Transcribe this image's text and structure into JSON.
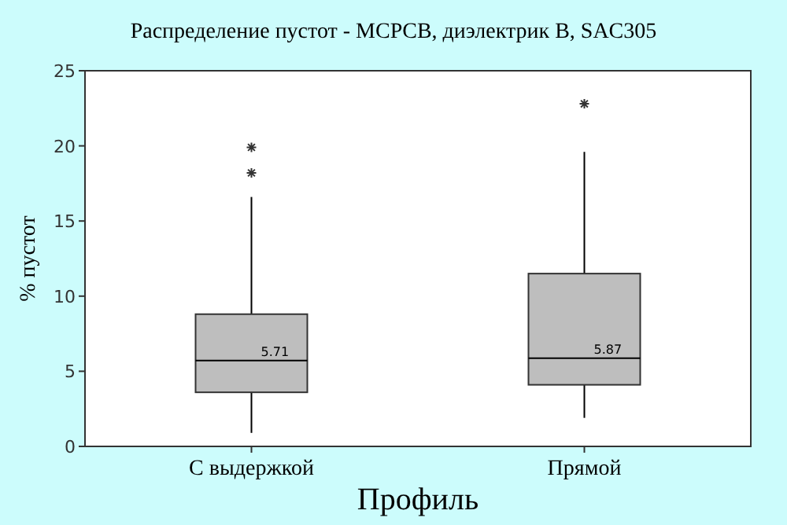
{
  "chart_data": {
    "type": "box",
    "title": "Распределение пустот - MCPCB, диэлектрик B, SAC305",
    "xlabel": "Профиль",
    "ylabel": "% пустот",
    "categories": [
      "С выдержкой",
      "Прямой"
    ],
    "color": "#bebebe",
    "boxes": [
      {
        "low": 0.9,
        "q1": 3.6,
        "median": 5.71,
        "q3": 8.8,
        "high": 16.6,
        "outliers": [
          18.2,
          19.9
        ]
      },
      {
        "low": 1.9,
        "q1": 4.1,
        "median": 5.87,
        "q3": 11.5,
        "high": 19.6,
        "outliers": [
          22.8
        ]
      }
    ],
    "annotations": [
      {
        "text": "5.71",
        "x": "С выдержкой",
        "y": 5.71
      },
      {
        "text": "5.87",
        "x": "Прямой",
        "y": 5.87
      }
    ],
    "ylim": [
      0,
      25
    ],
    "yticks": [
      0,
      5,
      10,
      15,
      20,
      25
    ],
    "grid": false
  }
}
